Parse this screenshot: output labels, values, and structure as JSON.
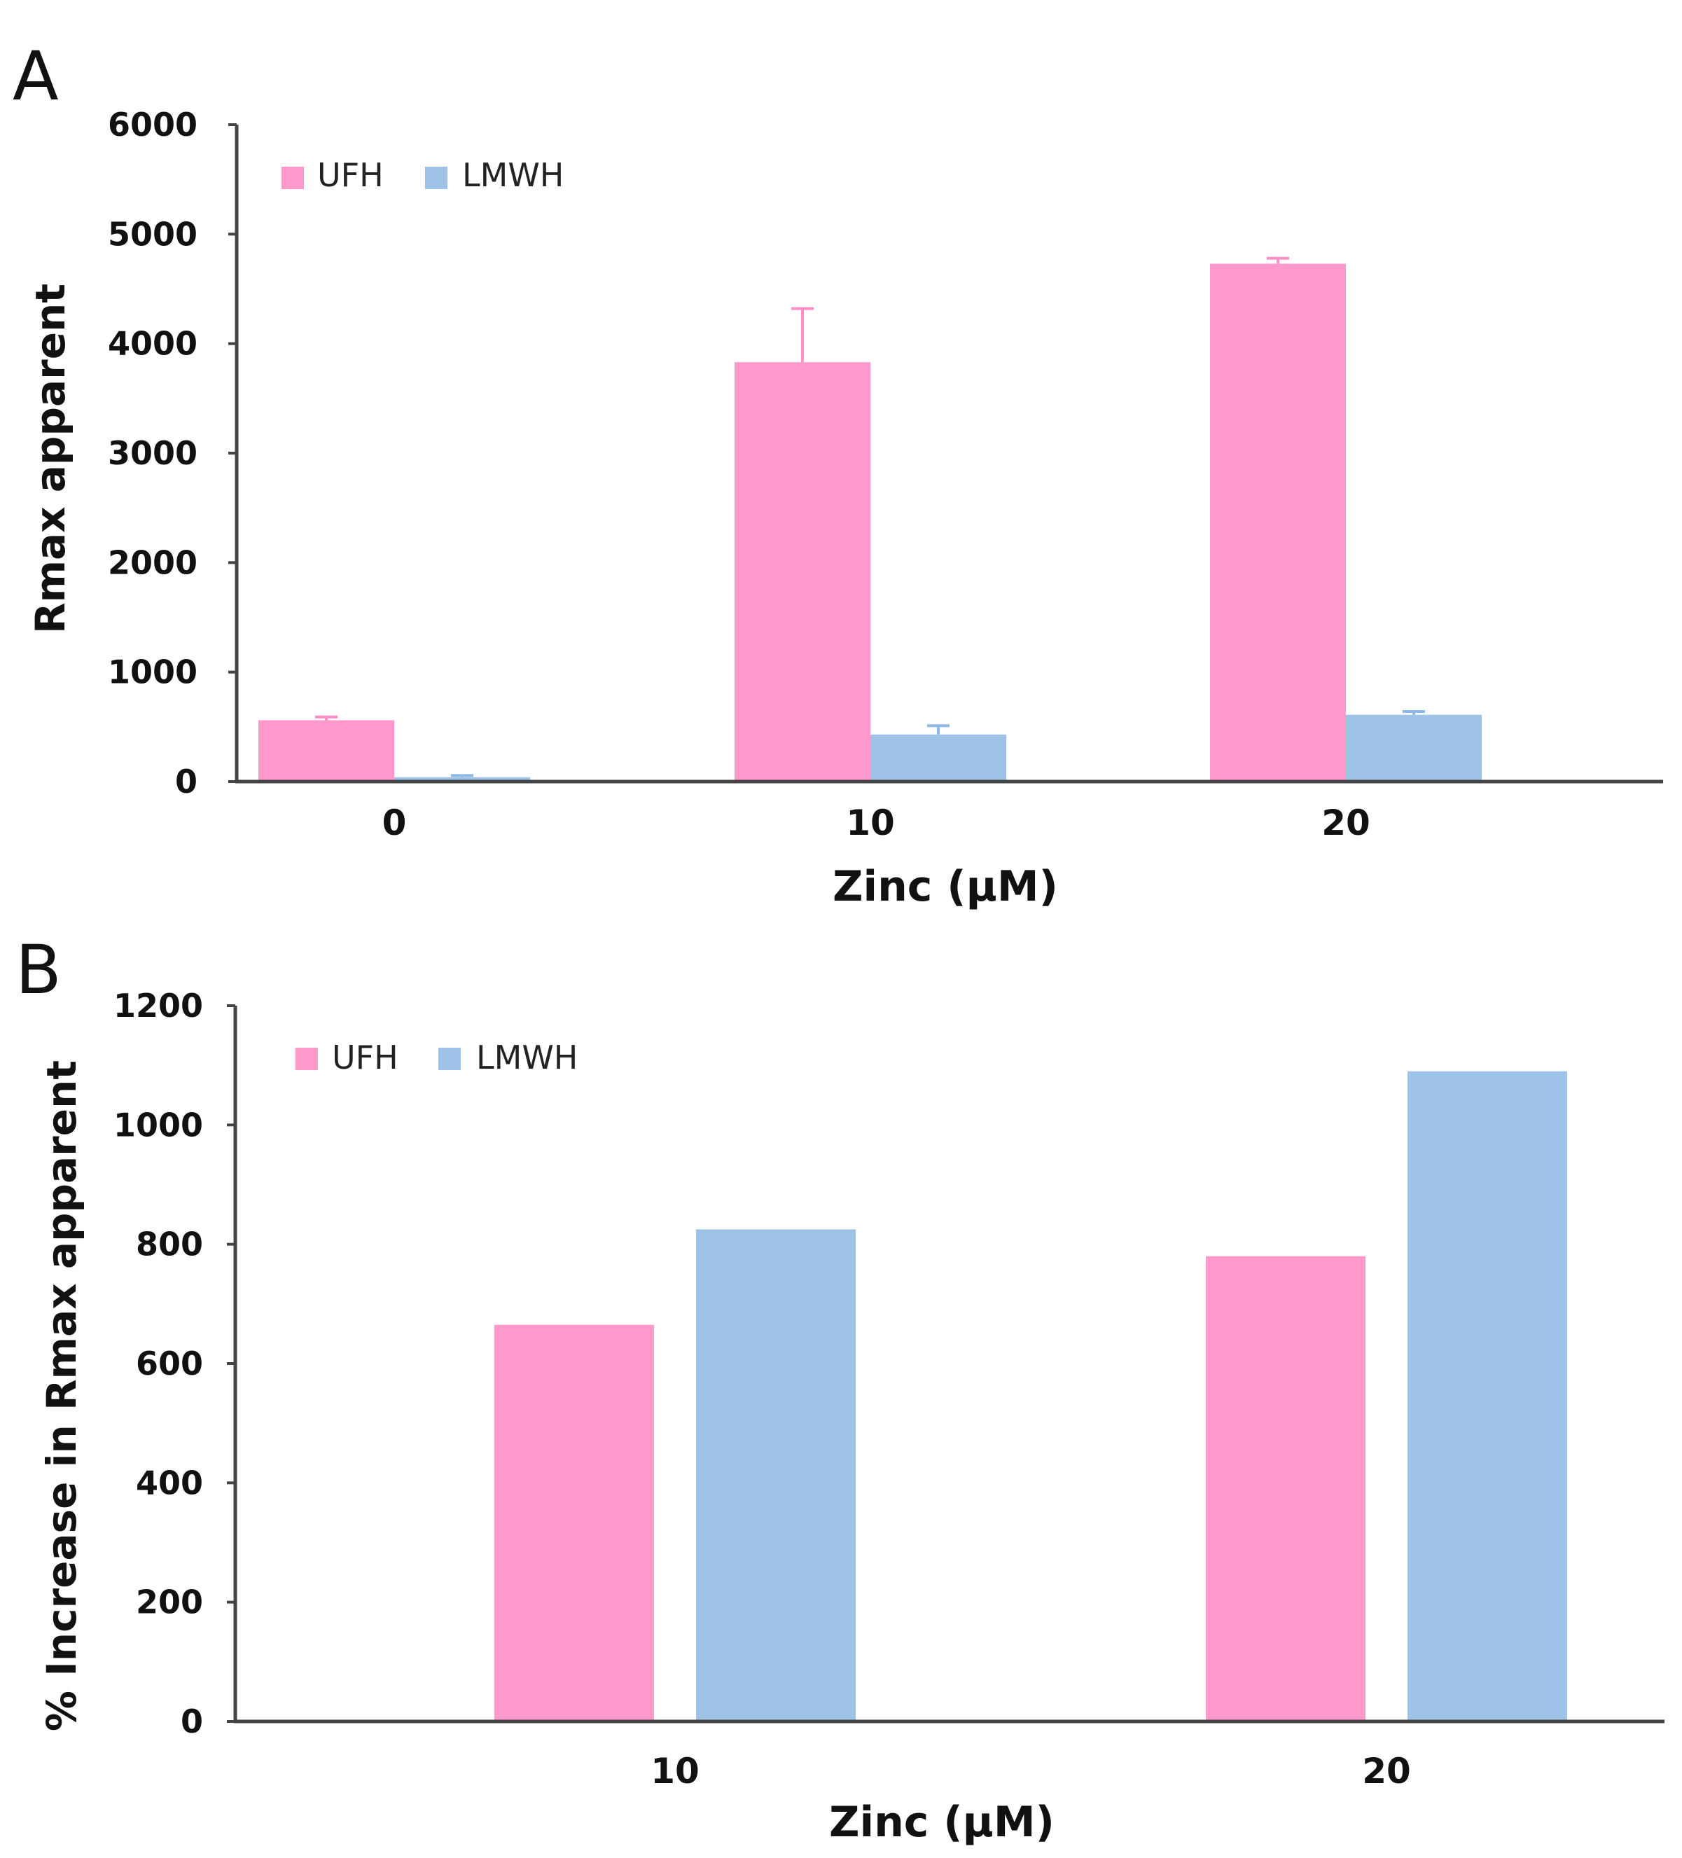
{
  "colors": {
    "UFH": "#ff99cc",
    "LMWH": "#9ec3e6",
    "UFH_err": "#ff8fc6",
    "LMWH_err": "#8fb9e6",
    "axis": "#444444"
  },
  "chart_data": [
    {
      "panel": "A",
      "type": "bar",
      "categories": [
        "0",
        "10",
        "20"
      ],
      "series": [
        {
          "name": "UFH",
          "values": [
            560,
            3830,
            4730
          ],
          "errors": [
            30,
            490,
            50
          ]
        },
        {
          "name": "LMWH",
          "values": [
            40,
            430,
            610
          ],
          "errors": [
            15,
            80,
            30
          ]
        }
      ],
      "xlabel": "Zinc (μM)",
      "ylabel": "Rmax apparent",
      "ylim": [
        0,
        6000
      ],
      "yticks": [
        "0",
        "1000",
        "2000",
        "3000",
        "4000",
        "5000",
        "6000"
      ],
      "legend_position": "top-left",
      "grid": false
    },
    {
      "panel": "B",
      "type": "bar",
      "categories": [
        "10",
        "20"
      ],
      "series": [
        {
          "name": "UFH",
          "values": [
            665,
            780
          ]
        },
        {
          "name": "LMWH",
          "values": [
            825,
            1090
          ]
        }
      ],
      "xlabel": "Zinc (μM)",
      "ylabel": "% Increase in Rmax apparent",
      "ylim": [
        0,
        1200
      ],
      "yticks": [
        "0",
        "200",
        "400",
        "600",
        "800",
        "1000",
        "1200"
      ],
      "legend_position": "top-left",
      "grid": false
    }
  ]
}
